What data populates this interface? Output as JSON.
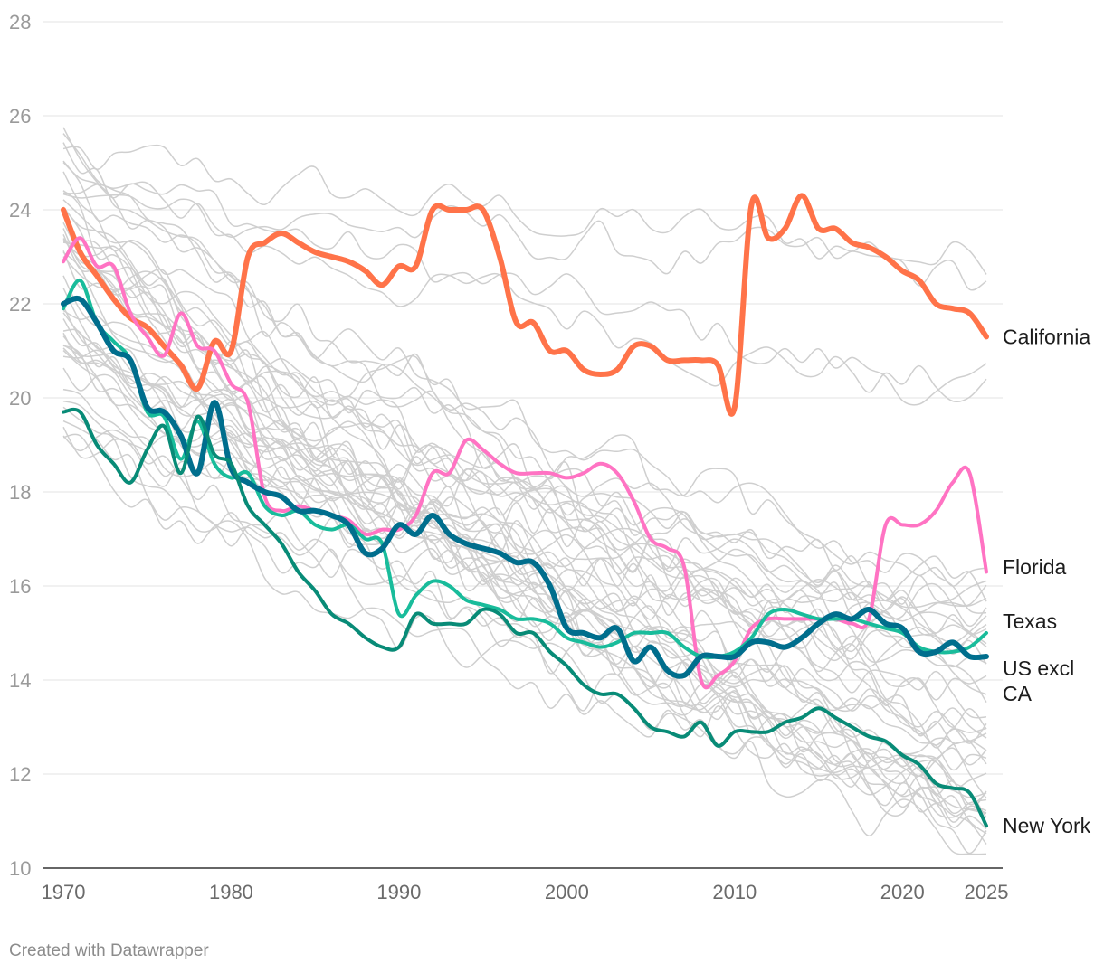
{
  "chart_data": {
    "type": "line",
    "title": "",
    "xlabel": "",
    "ylabel": "",
    "xlim": [
      1970,
      2025
    ],
    "ylim": [
      10,
      28
    ],
    "y_ticks": [
      10,
      12,
      14,
      16,
      18,
      20,
      22,
      24,
      26,
      28
    ],
    "x_ticks": [
      1970,
      1980,
      1990,
      2000,
      2010,
      2020,
      2025
    ],
    "grid": "horizontal",
    "background_series_note": "gray lines for other states (unlabeled)",
    "background_color": "#cccccc",
    "series": [
      {
        "name": "California",
        "label_lines": [
          "California"
        ],
        "color": "#ff7349",
        "width": 6,
        "points": [
          [
            1970,
            24.0
          ],
          [
            1971,
            23.1
          ],
          [
            1972,
            22.6
          ],
          [
            1973,
            22.1
          ],
          [
            1974,
            21.7
          ],
          [
            1975,
            21.5
          ],
          [
            1976,
            21.1
          ],
          [
            1977,
            20.7
          ],
          [
            1978,
            20.2
          ],
          [
            1979,
            21.2
          ],
          [
            1980,
            21.0
          ],
          [
            1981,
            23.0
          ],
          [
            1982,
            23.3
          ],
          [
            1983,
            23.5
          ],
          [
            1984,
            23.3
          ],
          [
            1985,
            23.1
          ],
          [
            1986,
            23.0
          ],
          [
            1987,
            22.9
          ],
          [
            1988,
            22.7
          ],
          [
            1989,
            22.4
          ],
          [
            1990,
            22.8
          ],
          [
            1991,
            22.8
          ],
          [
            1992,
            24.0
          ],
          [
            1993,
            24.0
          ],
          [
            1994,
            24.0
          ],
          [
            1995,
            24.0
          ],
          [
            1996,
            23.0
          ],
          [
            1997,
            21.6
          ],
          [
            1998,
            21.6
          ],
          [
            1999,
            21.0
          ],
          [
            2000,
            21.0
          ],
          [
            2001,
            20.6
          ],
          [
            2002,
            20.5
          ],
          [
            2003,
            20.6
          ],
          [
            2004,
            21.1
          ],
          [
            2005,
            21.1
          ],
          [
            2006,
            20.8
          ],
          [
            2007,
            20.8
          ],
          [
            2008,
            20.8
          ],
          [
            2009,
            20.7
          ],
          [
            2010,
            19.8
          ],
          [
            2011,
            24.1
          ],
          [
            2012,
            23.4
          ],
          [
            2013,
            23.6
          ],
          [
            2014,
            24.3
          ],
          [
            2015,
            23.6
          ],
          [
            2016,
            23.6
          ],
          [
            2017,
            23.3
          ],
          [
            2018,
            23.2
          ],
          [
            2019,
            23.0
          ],
          [
            2020,
            22.7
          ],
          [
            2021,
            22.5
          ],
          [
            2022,
            22.0
          ],
          [
            2023,
            21.9
          ],
          [
            2024,
            21.8
          ],
          [
            2025,
            21.3
          ]
        ]
      },
      {
        "name": "Florida",
        "label_lines": [
          "Florida"
        ],
        "color": "#ff73c3",
        "width": 4,
        "points": [
          [
            1970,
            22.9
          ],
          [
            1971,
            23.4
          ],
          [
            1972,
            22.8
          ],
          [
            1973,
            22.8
          ],
          [
            1974,
            21.8
          ],
          [
            1975,
            21.3
          ],
          [
            1976,
            20.9
          ],
          [
            1977,
            21.8
          ],
          [
            1978,
            21.1
          ],
          [
            1979,
            21.0
          ],
          [
            1980,
            20.3
          ],
          [
            1981,
            19.9
          ],
          [
            1982,
            17.9
          ],
          [
            1983,
            17.6
          ],
          [
            1984,
            17.7
          ],
          [
            1985,
            17.6
          ],
          [
            1986,
            17.5
          ],
          [
            1987,
            17.4
          ],
          [
            1988,
            17.1
          ],
          [
            1989,
            17.2
          ],
          [
            1990,
            17.2
          ],
          [
            1991,
            17.5
          ],
          [
            1992,
            18.4
          ],
          [
            1993,
            18.4
          ],
          [
            1994,
            19.1
          ],
          [
            1995,
            18.9
          ],
          [
            1996,
            18.6
          ],
          [
            1997,
            18.4
          ],
          [
            1998,
            18.4
          ],
          [
            1999,
            18.4
          ],
          [
            2000,
            18.3
          ],
          [
            2001,
            18.4
          ],
          [
            2002,
            18.6
          ],
          [
            2003,
            18.4
          ],
          [
            2004,
            17.8
          ],
          [
            2005,
            17.0
          ],
          [
            2006,
            16.8
          ],
          [
            2007,
            16.4
          ],
          [
            2008,
            14.0
          ],
          [
            2009,
            14.1
          ],
          [
            2010,
            14.4
          ],
          [
            2011,
            15.1
          ],
          [
            2012,
            15.3
          ],
          [
            2013,
            15.3
          ],
          [
            2014,
            15.3
          ],
          [
            2015,
            15.3
          ],
          [
            2016,
            15.3
          ],
          [
            2017,
            15.2
          ],
          [
            2018,
            15.3
          ],
          [
            2019,
            17.3
          ],
          [
            2020,
            17.3
          ],
          [
            2021,
            17.3
          ],
          [
            2022,
            17.6
          ],
          [
            2023,
            18.2
          ],
          [
            2024,
            18.4
          ],
          [
            2025,
            16.3
          ]
        ]
      },
      {
        "name": "Texas",
        "label_lines": [
          "Texas"
        ],
        "color": "#19bc9b",
        "width": 4,
        "points": [
          [
            1970,
            21.9
          ],
          [
            1971,
            22.5
          ],
          [
            1972,
            21.6
          ],
          [
            1973,
            21.2
          ],
          [
            1974,
            20.8
          ],
          [
            1975,
            19.7
          ],
          [
            1976,
            19.6
          ],
          [
            1977,
            18.7
          ],
          [
            1978,
            19.5
          ],
          [
            1979,
            18.6
          ],
          [
            1980,
            18.3
          ],
          [
            1981,
            18.4
          ],
          [
            1982,
            17.7
          ],
          [
            1983,
            17.5
          ],
          [
            1984,
            17.6
          ],
          [
            1985,
            17.3
          ],
          [
            1986,
            17.2
          ],
          [
            1987,
            17.3
          ],
          [
            1988,
            17.0
          ],
          [
            1989,
            16.9
          ],
          [
            1990,
            15.4
          ],
          [
            1991,
            15.8
          ],
          [
            1992,
            16.1
          ],
          [
            1993,
            16.0
          ],
          [
            1994,
            15.7
          ],
          [
            1995,
            15.6
          ],
          [
            1996,
            15.5
          ],
          [
            1997,
            15.3
          ],
          [
            1998,
            15.3
          ],
          [
            1999,
            15.2
          ],
          [
            2000,
            14.9
          ],
          [
            2001,
            14.8
          ],
          [
            2002,
            14.7
          ],
          [
            2003,
            14.8
          ],
          [
            2004,
            15.0
          ],
          [
            2005,
            15.0
          ],
          [
            2006,
            15.0
          ],
          [
            2007,
            14.7
          ],
          [
            2008,
            14.5
          ],
          [
            2009,
            14.5
          ],
          [
            2010,
            14.6
          ],
          [
            2011,
            14.9
          ],
          [
            2012,
            15.4
          ],
          [
            2013,
            15.5
          ],
          [
            2014,
            15.4
          ],
          [
            2015,
            15.3
          ],
          [
            2016,
            15.3
          ],
          [
            2017,
            15.3
          ],
          [
            2018,
            15.2
          ],
          [
            2019,
            15.1
          ],
          [
            2020,
            15.0
          ],
          [
            2021,
            14.7
          ],
          [
            2022,
            14.6
          ],
          [
            2023,
            14.6
          ],
          [
            2024,
            14.7
          ],
          [
            2025,
            15.0
          ]
        ]
      },
      {
        "name": "US excl CA",
        "label_lines": [
          "US excl",
          "CA"
        ],
        "color": "#006e8d",
        "width": 6,
        "points": [
          [
            1970,
            22.0
          ],
          [
            1971,
            22.1
          ],
          [
            1972,
            21.6
          ],
          [
            1973,
            21.0
          ],
          [
            1974,
            20.8
          ],
          [
            1975,
            19.8
          ],
          [
            1976,
            19.7
          ],
          [
            1977,
            19.2
          ],
          [
            1978,
            18.4
          ],
          [
            1979,
            19.9
          ],
          [
            1980,
            18.5
          ],
          [
            1981,
            18.2
          ],
          [
            1982,
            18.0
          ],
          [
            1983,
            17.9
          ],
          [
            1984,
            17.6
          ],
          [
            1985,
            17.6
          ],
          [
            1986,
            17.5
          ],
          [
            1987,
            17.3
          ],
          [
            1988,
            16.7
          ],
          [
            1989,
            16.8
          ],
          [
            1990,
            17.3
          ],
          [
            1991,
            17.1
          ],
          [
            1992,
            17.5
          ],
          [
            1993,
            17.1
          ],
          [
            1994,
            16.9
          ],
          [
            1995,
            16.8
          ],
          [
            1996,
            16.7
          ],
          [
            1997,
            16.5
          ],
          [
            1998,
            16.5
          ],
          [
            1999,
            16.0
          ],
          [
            2000,
            15.1
          ],
          [
            2001,
            15.0
          ],
          [
            2002,
            14.9
          ],
          [
            2003,
            15.1
          ],
          [
            2004,
            14.4
          ],
          [
            2005,
            14.7
          ],
          [
            2006,
            14.2
          ],
          [
            2007,
            14.1
          ],
          [
            2008,
            14.5
          ],
          [
            2009,
            14.5
          ],
          [
            2010,
            14.5
          ],
          [
            2011,
            14.8
          ],
          [
            2012,
            14.8
          ],
          [
            2013,
            14.7
          ],
          [
            2014,
            14.9
          ],
          [
            2015,
            15.2
          ],
          [
            2016,
            15.4
          ],
          [
            2017,
            15.3
          ],
          [
            2018,
            15.5
          ],
          [
            2019,
            15.2
          ],
          [
            2020,
            15.1
          ],
          [
            2021,
            14.6
          ],
          [
            2022,
            14.6
          ],
          [
            2023,
            14.8
          ],
          [
            2024,
            14.5
          ],
          [
            2025,
            14.5
          ]
        ]
      },
      {
        "name": "New York",
        "label_lines": [
          "New York"
        ],
        "color": "#088b77",
        "width": 4,
        "points": [
          [
            1970,
            19.7
          ],
          [
            1971,
            19.7
          ],
          [
            1972,
            19.0
          ],
          [
            1973,
            18.6
          ],
          [
            1974,
            18.2
          ],
          [
            1975,
            18.9
          ],
          [
            1976,
            19.4
          ],
          [
            1977,
            18.4
          ],
          [
            1978,
            19.6
          ],
          [
            1979,
            18.8
          ],
          [
            1980,
            18.6
          ],
          [
            1981,
            17.7
          ],
          [
            1982,
            17.3
          ],
          [
            1983,
            16.9
          ],
          [
            1984,
            16.3
          ],
          [
            1985,
            15.9
          ],
          [
            1986,
            15.4
          ],
          [
            1987,
            15.2
          ],
          [
            1988,
            14.9
          ],
          [
            1989,
            14.7
          ],
          [
            1990,
            14.7
          ],
          [
            1991,
            15.4
          ],
          [
            1992,
            15.2
          ],
          [
            1993,
            15.2
          ],
          [
            1994,
            15.2
          ],
          [
            1995,
            15.5
          ],
          [
            1996,
            15.4
          ],
          [
            1997,
            15.0
          ],
          [
            1998,
            15.0
          ],
          [
            1999,
            14.6
          ],
          [
            2000,
            14.3
          ],
          [
            2001,
            13.9
          ],
          [
            2002,
            13.7
          ],
          [
            2003,
            13.7
          ],
          [
            2004,
            13.4
          ],
          [
            2005,
            13.0
          ],
          [
            2006,
            12.9
          ],
          [
            2007,
            12.8
          ],
          [
            2008,
            13.1
          ],
          [
            2009,
            12.6
          ],
          [
            2010,
            12.9
          ],
          [
            2011,
            12.9
          ],
          [
            2012,
            12.9
          ],
          [
            2013,
            13.1
          ],
          [
            2014,
            13.2
          ],
          [
            2015,
            13.4
          ],
          [
            2016,
            13.2
          ],
          [
            2017,
            13.0
          ],
          [
            2018,
            12.8
          ],
          [
            2019,
            12.7
          ],
          [
            2020,
            12.4
          ],
          [
            2021,
            12.2
          ],
          [
            2022,
            11.8
          ],
          [
            2023,
            11.7
          ],
          [
            2024,
            11.6
          ],
          [
            2025,
            10.9
          ]
        ]
      }
    ]
  },
  "credit": "Created with Datawrapper"
}
